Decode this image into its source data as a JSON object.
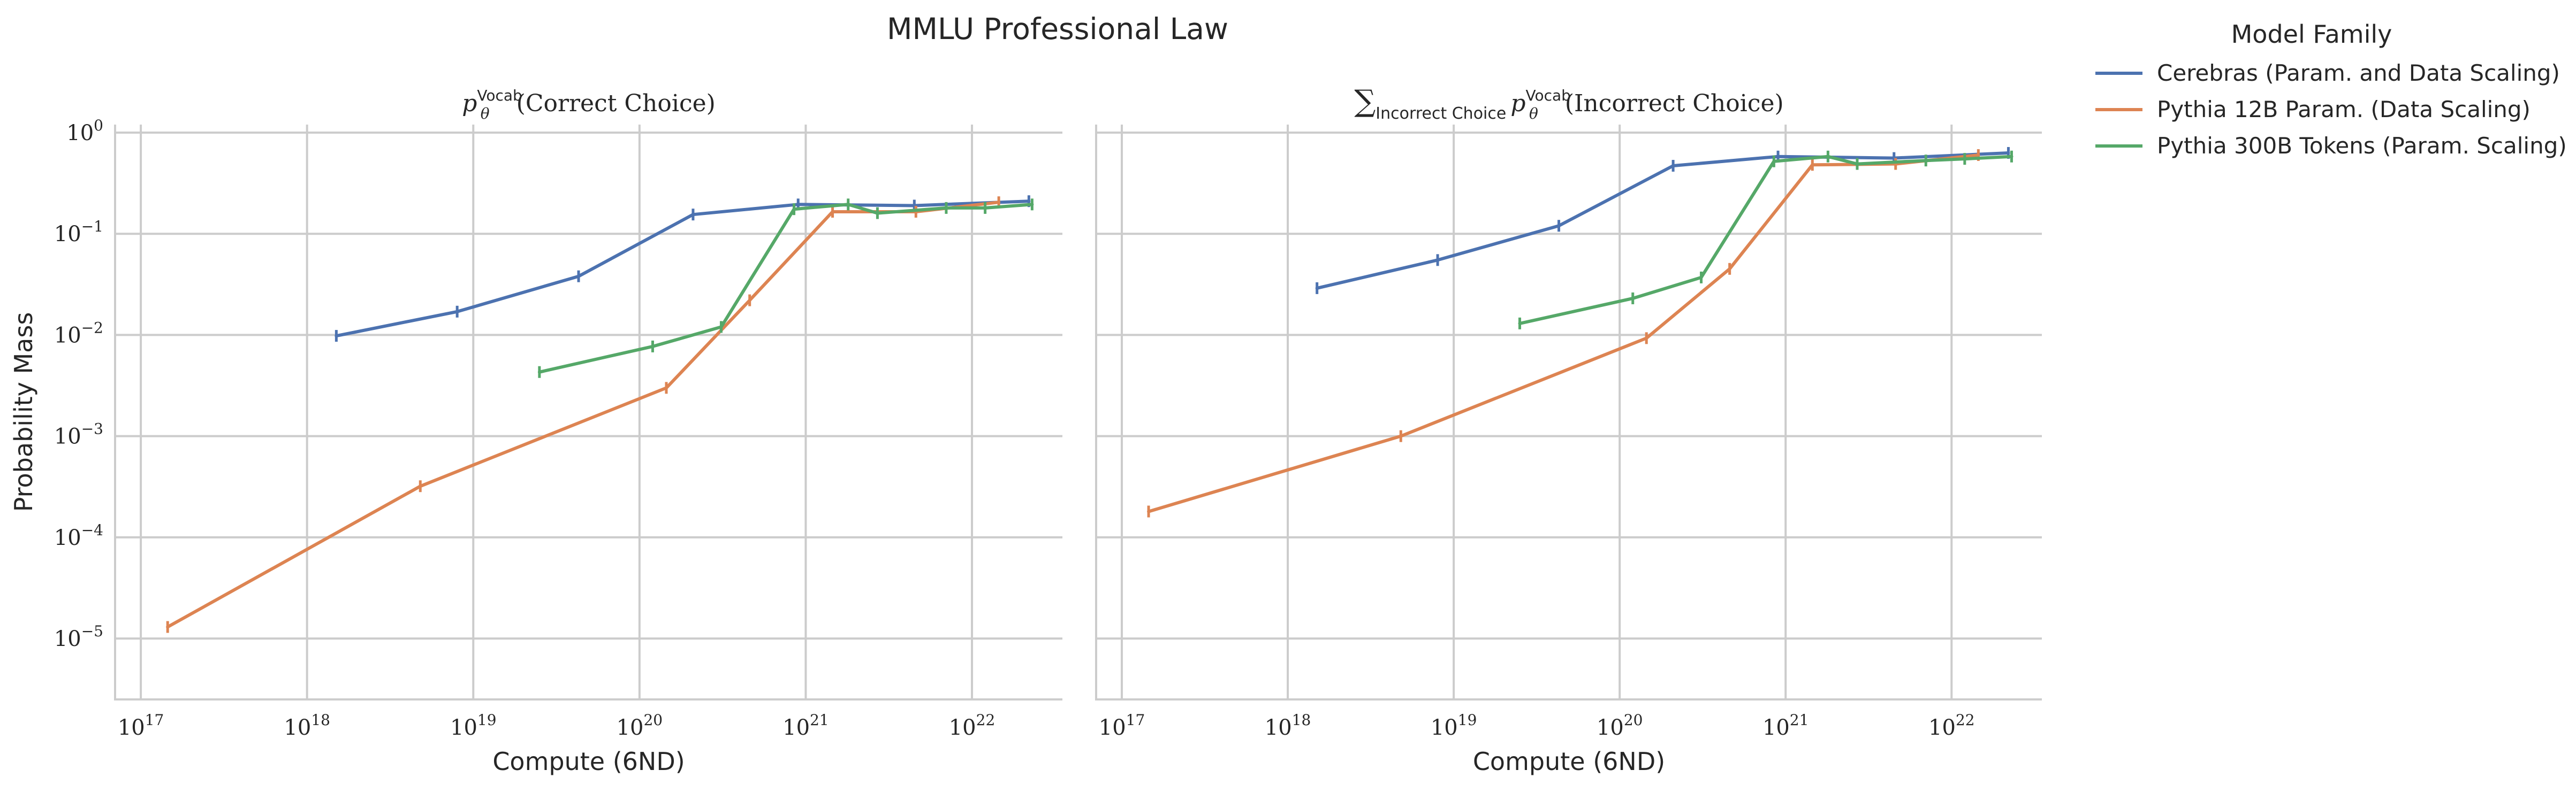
{
  "figure": {
    "title": "MMLU Professional Law",
    "legend_title": "Model Family",
    "legend_location": "right, outside plots, top"
  },
  "colors": {
    "Cerebras (Param. and Data Scaling)": "#4C72B0",
    "Pythia 12B Param. (Data Scaling)": "#DD8452",
    "Pythia 300B Tokens (Param. Scaling)": "#55A868",
    "grid": "#cccccc"
  },
  "chart_data": [
    {
      "type": "line",
      "title": "p_θ^Vocab(Correct Choice)",
      "title_parts": {
        "base": "p",
        "sup": "Vocab",
        "sub": "θ",
        "rest": "(Correct Choice)"
      },
      "xlabel": "Compute (6ND)",
      "ylabel": "Probability Mass",
      "xscale": "log",
      "yscale": "log",
      "xlim": [
        7e+16,
        3.5e+22
      ],
      "ylim": [
        2.5e-06,
        1.2
      ],
      "xticks": [
        {
          "value": 1e+17,
          "base": "10",
          "exp": "17"
        },
        {
          "value": 1e+18,
          "base": "10",
          "exp": "18"
        },
        {
          "value": 1e+19,
          "base": "10",
          "exp": "19"
        },
        {
          "value": 1e+20,
          "base": "10",
          "exp": "20"
        },
        {
          "value": 1e+21,
          "base": "10",
          "exp": "21"
        },
        {
          "value": 1e+22,
          "base": "10",
          "exp": "22"
        }
      ],
      "yticks": [
        {
          "value": 1e-05,
          "base": "10",
          "exp": "−5"
        },
        {
          "value": 0.0001,
          "base": "10",
          "exp": "−4"
        },
        {
          "value": 0.001,
          "base": "10",
          "exp": "−3"
        },
        {
          "value": 0.01,
          "base": "10",
          "exp": "−2"
        },
        {
          "value": 0.1,
          "base": "10",
          "exp": "−1"
        },
        {
          "value": 1,
          "base": "10",
          "exp": "0"
        }
      ],
      "grid": true,
      "series": [
        {
          "name": "Cerebras (Param. and Data Scaling)",
          "x": [
            1.5e+18,
            8e+18,
            4.3e+19,
            2.1e+20,
            9e+20,
            4.5e+21,
            2.2e+22
          ],
          "y": [
            0.0098,
            0.017,
            0.038,
            0.155,
            0.195,
            0.19,
            0.21
          ]
        },
        {
          "name": "Pythia 12B Param. (Data Scaling)",
          "x": [
            1.45e+17,
            4.8e+18,
            1.45e+20,
            4.6e+20,
            1.45e+21,
            4.6e+21,
            1.45e+22
          ],
          "y": [
            1.3e-05,
            0.00032,
            0.003,
            0.022,
            0.165,
            0.165,
            0.205
          ]
        },
        {
          "name": "Pythia 300B Tokens (Param. Scaling)",
          "x": [
            2.5e+19,
            1.2e+20,
            3.1e+20,
            8.5e+20,
            1.8e+21,
            2.7e+21,
            7e+21,
            1.2e+22,
            2.3e+22
          ],
          "y": [
            0.0043,
            0.0077,
            0.012,
            0.175,
            0.195,
            0.16,
            0.18,
            0.18,
            0.195
          ]
        }
      ]
    },
    {
      "type": "line",
      "title": "∑_Incorrect Choice p_θ^Vocab(Incorrect Choice)",
      "title_parts": {
        "sum": "∑",
        "sum_sub": "Incorrect Choice",
        "base": "p",
        "sup": "Vocab",
        "sub": "θ",
        "rest": "(Incorrect Choice)"
      },
      "xlabel": "Compute (6ND)",
      "xscale": "log",
      "yscale": "log",
      "xlim": [
        7e+16,
        3.5e+22
      ],
      "ylim": [
        2.5e-06,
        1.2
      ],
      "xticks": [
        {
          "value": 1e+17,
          "base": "10",
          "exp": "17"
        },
        {
          "value": 1e+18,
          "base": "10",
          "exp": "18"
        },
        {
          "value": 1e+19,
          "base": "10",
          "exp": "19"
        },
        {
          "value": 1e+20,
          "base": "10",
          "exp": "20"
        },
        {
          "value": 1e+21,
          "base": "10",
          "exp": "21"
        },
        {
          "value": 1e+22,
          "base": "10",
          "exp": "22"
        }
      ],
      "grid": true,
      "series": [
        {
          "name": "Cerebras (Param. and Data Scaling)",
          "x": [
            1.5e+18,
            8e+18,
            4.3e+19,
            2.1e+20,
            9e+20,
            4.5e+21,
            2.2e+22
          ],
          "y": [
            0.029,
            0.055,
            0.12,
            0.47,
            0.58,
            0.56,
            0.63
          ]
        },
        {
          "name": "Pythia 12B Param. (Data Scaling)",
          "x": [
            1.45e+17,
            4.8e+18,
            1.45e+20,
            4.6e+20,
            1.45e+21,
            4.6e+21,
            1.45e+22
          ],
          "y": [
            0.00018,
            0.001,
            0.0093,
            0.045,
            0.48,
            0.49,
            0.6
          ]
        },
        {
          "name": "Pythia 300B Tokens (Param. Scaling)",
          "x": [
            2.5e+19,
            1.2e+20,
            3.1e+20,
            8.5e+20,
            1.8e+21,
            2.7e+21,
            7e+21,
            1.2e+22,
            2.3e+22
          ],
          "y": [
            0.013,
            0.023,
            0.037,
            0.52,
            0.58,
            0.49,
            0.53,
            0.55,
            0.58
          ]
        }
      ]
    }
  ]
}
